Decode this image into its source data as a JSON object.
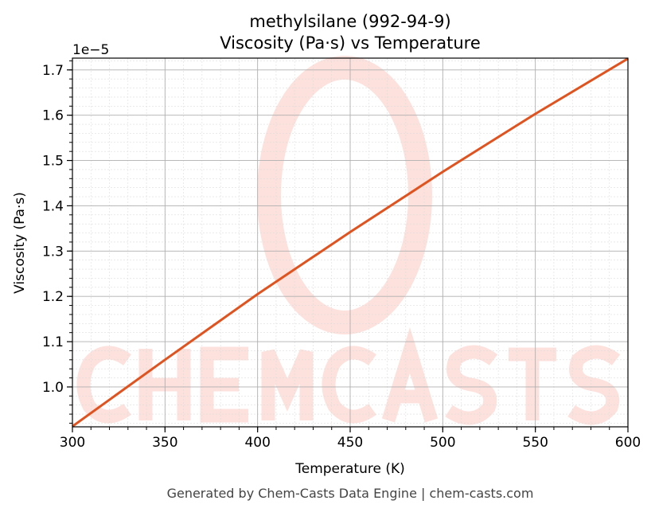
{
  "chart_data": {
    "type": "line",
    "title": "methylsilane (992-94-9)",
    "subtitle": "Viscosity (Pa·s) vs Temperature",
    "xlabel": "Temperature (K)",
    "ylabel": "Viscosity (Pa·s)",
    "y_offset_label": "1e−5",
    "xlim": [
      300,
      600
    ],
    "ylim": [
      0.912,
      1.726
    ],
    "x_ticks": [
      300,
      350,
      400,
      450,
      500,
      550,
      600
    ],
    "x_tick_labels": [
      "300",
      "350",
      "400",
      "450",
      "500",
      "550",
      "600"
    ],
    "y_ticks": [
      1.0,
      1.1,
      1.2,
      1.3,
      1.4,
      1.5,
      1.6,
      1.7
    ],
    "y_tick_labels": [
      "1.0",
      "1.1",
      "1.2",
      "1.3",
      "1.4",
      "1.5",
      "1.6",
      "1.7"
    ],
    "grid": true,
    "minor_grid": true,
    "series": [
      {
        "x": [
          300,
          350,
          400,
          450,
          500,
          550,
          600
        ],
        "values": [
          0.913,
          1.06,
          1.205,
          1.342,
          1.475,
          1.603,
          1.725
        ],
        "color": "#e0531f"
      }
    ]
  },
  "watermark": "CHEMCASTS",
  "footer": "Generated by Chem-Casts Data Engine | chem-casts.com"
}
